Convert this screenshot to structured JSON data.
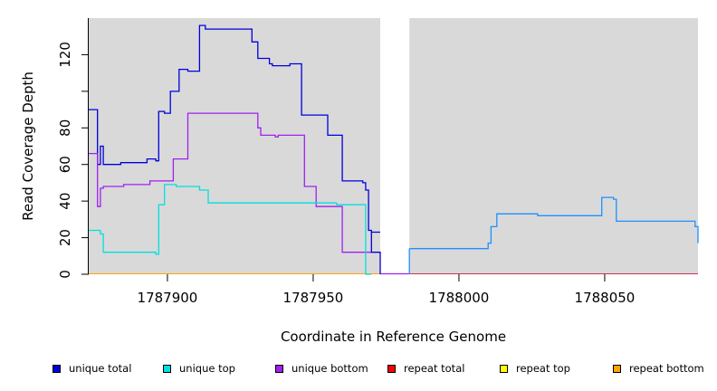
{
  "chart_data": {
    "type": "line",
    "title": "",
    "xlabel": "Coordinate in Reference Genome",
    "ylabel": "Read Coverage Depth",
    "xlim": [
      1787873,
      1788082
    ],
    "ylim": [
      0,
      140
    ],
    "xticks": [
      1787900,
      1787950,
      1788000,
      1788050
    ],
    "yticks": [
      0,
      20,
      40,
      60,
      80,
      100,
      120
    ],
    "ytick_labels": [
      "0",
      "20",
      "40",
      "60",
      "80",
      "",
      "120"
    ],
    "regions": [
      {
        "x0": 1787873,
        "x1": 1787973,
        "color": "#d9d9d9"
      },
      {
        "x0": 1787983,
        "x1": 1788082,
        "color": "#d9d9d9"
      }
    ],
    "series": [
      {
        "name": "unique total",
        "color": "#0000dd",
        "x": [
          1787873,
          1787876,
          1787876,
          1787877,
          1787877,
          1787878,
          1787878,
          1787884,
          1787884,
          1787893,
          1787893,
          1787896,
          1787896,
          1787897,
          1787897,
          1787899,
          1787899,
          1787901,
          1787901,
          1787904,
          1787904,
          1787907,
          1787907,
          1787911,
          1787911,
          1787913,
          1787913,
          1787929,
          1787929,
          1787931,
          1787931,
          1787935,
          1787935,
          1787936,
          1787936,
          1787942,
          1787942,
          1787946,
          1787946,
          1787955,
          1787955,
          1787960,
          1787960,
          1787967,
          1787967,
          1787968,
          1787968,
          1787969,
          1787969,
          1787970,
          1787970,
          1787973
        ],
        "y": [
          90,
          90,
          60,
          60,
          70,
          70,
          60,
          60,
          61,
          61,
          63,
          63,
          62,
          62,
          89,
          89,
          88,
          88,
          100,
          100,
          112,
          112,
          111,
          111,
          136,
          136,
          134,
          134,
          127,
          127,
          118,
          118,
          115,
          115,
          114,
          114,
          115,
          115,
          87,
          87,
          76,
          76,
          51,
          51,
          50,
          50,
          46,
          46,
          24,
          24,
          23,
          23
        ]
      },
      {
        "name": "unique bottom",
        "color": "#a020f0",
        "x": [
          1787873,
          1787876,
          1787876,
          1787877,
          1787877,
          1787878,
          1787878,
          1787885,
          1787885,
          1787894,
          1787894,
          1787902,
          1787902,
          1787907,
          1787907,
          1787931,
          1787931,
          1787932,
          1787932,
          1787937,
          1787937,
          1787938,
          1787938,
          1787947,
          1787947,
          1787951,
          1787951,
          1787960,
          1787960,
          1787970
        ],
        "y": [
          66,
          66,
          37,
          37,
          47,
          47,
          48,
          48,
          49,
          49,
          51,
          51,
          63,
          63,
          88,
          88,
          80,
          80,
          76,
          76,
          75,
          75,
          76,
          76,
          48,
          48,
          37,
          37,
          12,
          12
        ]
      },
      {
        "name": "unique top",
        "color": "#00e0e0",
        "x": [
          1787873,
          1787877,
          1787877,
          1787878,
          1787878,
          1787896,
          1787896,
          1787897,
          1787897,
          1787899,
          1787899,
          1787903,
          1787903,
          1787911,
          1787911,
          1787914,
          1787914,
          1787958,
          1787958,
          1787962,
          1787962,
          1787968,
          1787968,
          1787970
        ],
        "y": [
          24,
          24,
          22,
          22,
          12,
          12,
          11,
          11,
          38,
          38,
          49,
          49,
          48,
          48,
          46,
          46,
          39,
          39,
          38,
          38,
          38,
          38,
          0,
          0
        ]
      },
      {
        "name": "unique total",
        "color": "#1e90ff",
        "x": [
          1787983,
          1788010,
          1788010,
          1788011,
          1788011,
          1788013,
          1788013,
          1788027,
          1788027,
          1788049,
          1788049,
          1788053,
          1788053,
          1788054,
          1788054,
          1788081,
          1788081,
          1788082,
          1788082
        ],
        "y": [
          14,
          14,
          17,
          17,
          26,
          26,
          33,
          33,
          32,
          32,
          42,
          42,
          41,
          41,
          29,
          29,
          26,
          26,
          17
        ]
      }
    ],
    "legend": [
      {
        "label": "unique total",
        "color": "#0000dd"
      },
      {
        "label": "unique top",
        "color": "#00e0e0"
      },
      {
        "label": "unique bottom",
        "color": "#a020f0"
      },
      {
        "label": "repeat total",
        "color": "#ff0000"
      },
      {
        "label": "repeat top",
        "color": "#ffff00"
      },
      {
        "label": "repeat bottom",
        "color": "#ffa500"
      }
    ],
    "legend_position": "bottom",
    "grid": false
  }
}
